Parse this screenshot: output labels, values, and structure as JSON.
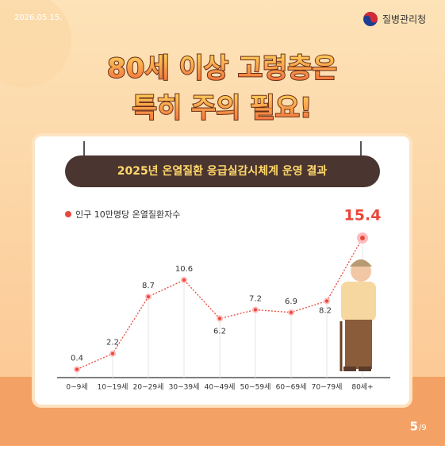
{
  "date": "2026.05.15.",
  "agency": "질병관리청",
  "headline": [
    "80세 이상 고령층은",
    "특히 주의 필요!"
  ],
  "chart_data": {
    "type": "line",
    "title": "2025년 온열질환 응급실감시체계 운영 결과",
    "categories": [
      "0~9세",
      "10~19세",
      "20~29세",
      "30~39세",
      "40~49세",
      "50~59세",
      "60~69세",
      "70~79세",
      "80세+"
    ],
    "series": [
      {
        "name": "인구 10만명당 온열질환자수",
        "color": "#e8473a",
        "values": [
          0.4,
          2.2,
          8.7,
          10.6,
          6.2,
          7.2,
          6.9,
          8.2,
          15.4
        ]
      }
    ]
  },
  "page": {
    "current": "5",
    "total": "/9"
  }
}
